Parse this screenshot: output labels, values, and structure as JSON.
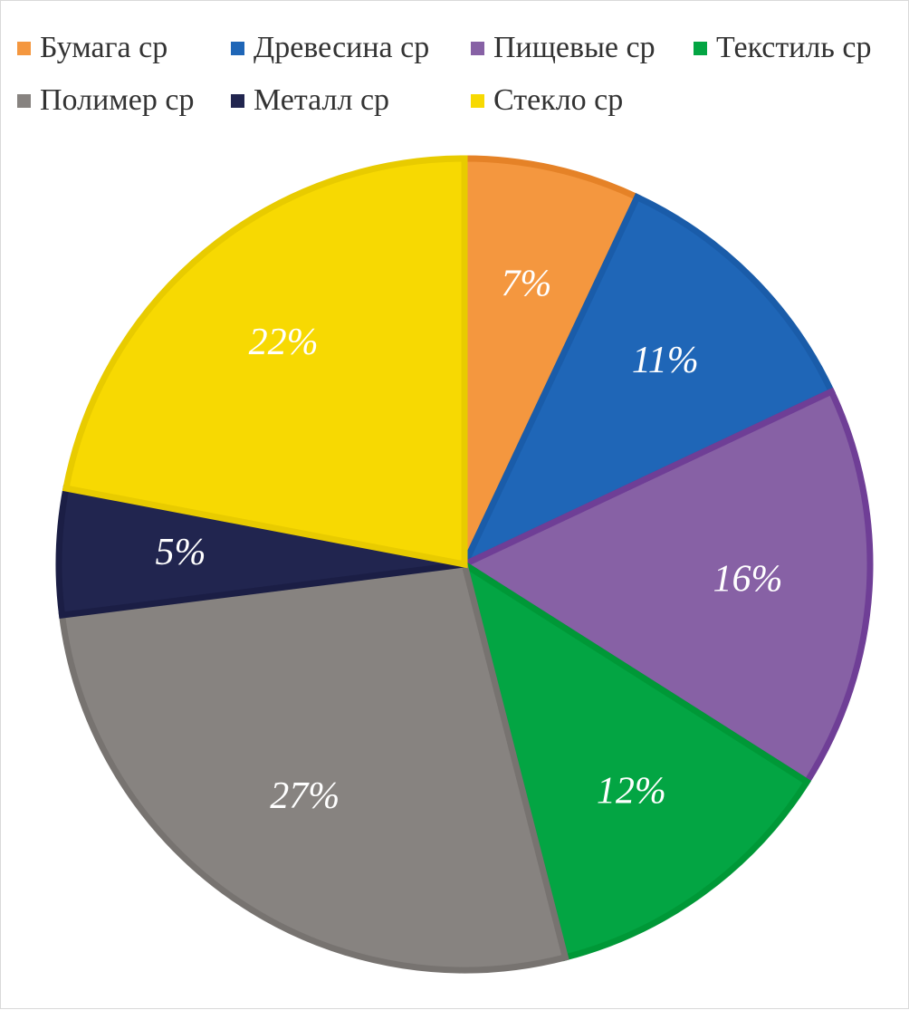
{
  "chart_data": {
    "type": "pie",
    "title": "",
    "legend_position": "top",
    "categories": [
      "Бумага ср",
      "Древесина ср",
      "Пищевые ср",
      "Текстиль ср",
      "Полимер ср",
      "Металл ср",
      "Стекло ср"
    ],
    "values": [
      7,
      11,
      16,
      12,
      27,
      5,
      22
    ],
    "labels": [
      "7%",
      "11%",
      "16%",
      "12%",
      "27%",
      "5%",
      "22%"
    ],
    "colors": [
      "#F4973F",
      "#1F66B7",
      "#8761A5",
      "#03A543",
      "#878380",
      "#21254F",
      "#F7D902"
    ],
    "border_colors": [
      "#E58227",
      "#1A5CA9",
      "#6F3E96",
      "#009837",
      "#777370",
      "#1B1E45",
      "#E8CB00"
    ]
  }
}
